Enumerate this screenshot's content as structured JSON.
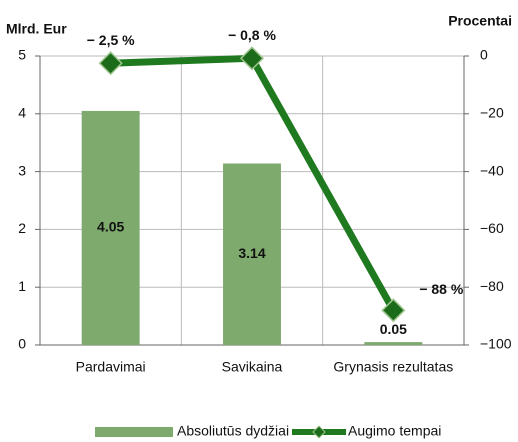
{
  "chart_data": {
    "type": "bar",
    "y_label": "Mlrd. Eur",
    "y2_label": "Procentai",
    "categories": [
      "Pardavimai",
      "Savikaina",
      "Grynasis rezultatas"
    ],
    "series": [
      {
        "name": "Absoliutūs dydžiai",
        "type": "bar",
        "color": "#7faa6e",
        "values": [
          4.05,
          3.14,
          0.05
        ]
      },
      {
        "name": "Augimo tempai",
        "type": "line",
        "axis": "y2",
        "color": "#1f7a1f",
        "values": [
          -2.5,
          -0.8,
          -88
        ],
        "value_labels": [
          "− 2,5 %",
          "− 0,8 %",
          "− 88 %"
        ]
      }
    ],
    "ylim": [
      0,
      5
    ],
    "yticks": [
      0,
      1,
      2,
      3,
      4,
      5
    ],
    "y2lim": [
      -100,
      0
    ],
    "y2ticks": [
      0,
      {
        "value": -20,
        "label": "−20"
      },
      {
        "value": -40,
        "label": "−40"
      },
      {
        "value": -60,
        "label": "−60"
      },
      {
        "value": -80,
        "label": "−80"
      },
      {
        "value": -100,
        "label": "−100"
      }
    ],
    "grid": true
  }
}
